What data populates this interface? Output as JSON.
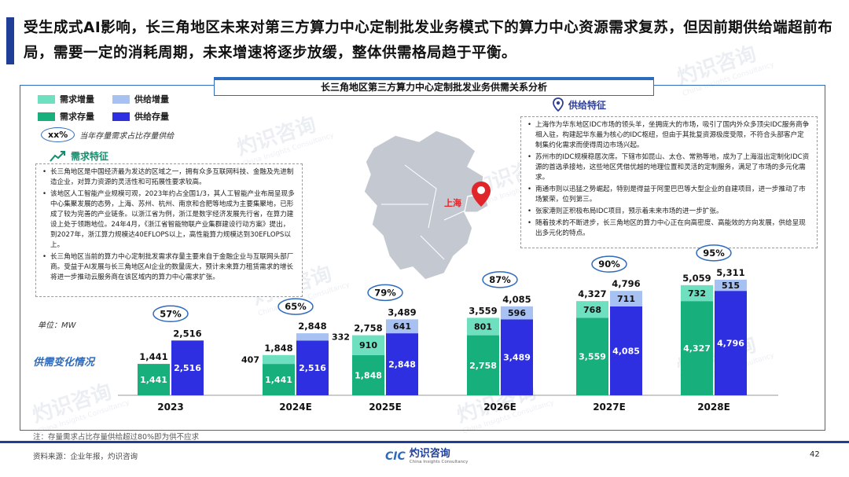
{
  "headline": "受生成式AI影响，长三角地区未来对第三方算力中心定制批发业务模式下的算力中心资源需求复苏，但因前期供给端超前布局，需要一定的消耗周期，未来增速将逐步放缓，整体供需格局趋于平衡。",
  "panel_title": "长三角地区第三方算力中心定制批发业务供需关系分析",
  "legend": {
    "demand_increase": "需求增量",
    "supply_increase": "供给增量",
    "demand_stock": "需求存量",
    "supply_stock": "供给存量"
  },
  "ratio_key": {
    "oval": "xx%",
    "text": "当年存量需求占比存量供给"
  },
  "demand": {
    "heading": "需求特征",
    "bullets": [
      "长三角地区是中国经济最为发达的区域之一，拥有众多互联网科技、金融及先进制造企业，对算力资源的灵活性和可拓展性要求较高。",
      "该地区人工智能产业规模可观，2023年约占全国1/3，其人工智能产业布局呈现多中心集聚发展的态势，上海、苏州、杭州、南京和合肥等地成为主要集聚地，已形成了较为完善的产业链条。以浙江省为例，浙江是数字经济发展先行省，在算力建设上处于领跑地位。24年4月，《浙江省智能物联产业集群建设行动方案》提出，到2027年，浙江算力规模达40EFLOPS以上，高性能算力规模达到30EFLOPS以上。",
      "长三角地区当前的算力中心定制批发需求存量主要来自于金融企业与互联网头部厂商。受益于AI发展与长三角地区AI企业的数量庞大，预计未来算力租赁需求的增长将进一步推动云服务商在该区域内的算力中心需求扩张。"
    ]
  },
  "supply": {
    "heading": "供给特征",
    "bullets": [
      "上海作为华东地区IDC市场的领头羊，坐拥庞大的市场，吸引了国内外众多顶尖IDC服务商争相入驻，构建起华东最为核心的IDC枢纽，但由于其批复资源极度受限，不符合头部客户定制集约化需求而使得周边市场兴起。",
      "苏州市的IDC规模稳居次席。下辖市如昆山、太仓、常熟等地，成为了上海溢出定制化IDC资源的首选承接地，这些地区凭借优越的地理位置和灵活的定制服务，满足了市场的多元化需求。",
      "南通市则以迅猛之势崛起，特别是得益于阿里巴巴等大型企业的自建项目，进一步推动了市场繁荣，位列第三。",
      "张家港则正积极布局IDC项目，预示着未来市场的进一步扩张。",
      "随着技术的不断进步，长三角地区的算力中心正在向高密度、高能效的方向发展，供给呈现出多元化的特点。"
    ]
  },
  "map": {
    "city_label": "上海"
  },
  "unit": "单位：MW",
  "supply_demand_label": "供需变化情况",
  "chart_data": {
    "type": "bar",
    "categories": [
      "2023",
      "2024E",
      "2025E",
      "2026E",
      "2027E",
      "2028E"
    ],
    "series": [
      {
        "name": "需求存量",
        "values": [
          1441,
          1441,
          1848,
          2758,
          3559,
          4327
        ]
      },
      {
        "name": "需求增量",
        "values": [
          null,
          407,
          910,
          801,
          768,
          732
        ]
      },
      {
        "name": "供给存量",
        "values": [
          2516,
          2516,
          2848,
          3489,
          4085,
          4796
        ]
      },
      {
        "name": "供给增量",
        "values": [
          null,
          332,
          641,
          596,
          711,
          515
        ]
      }
    ],
    "demand_totals": [
      1441,
      1848,
      2758,
      3559,
      4327,
      5059
    ],
    "supply_totals": [
      2516,
      2848,
      3489,
      4085,
      4796,
      5311
    ],
    "ratio_labels": [
      "57%",
      "65%",
      "79%",
      "87%",
      "90%",
      "95%"
    ],
    "colors": {
      "demand_stock": "#17b07c",
      "demand_increase": "#6ee0c0",
      "supply_stock": "#2e2fe0",
      "supply_increase": "#a7c2f2"
    }
  },
  "note": "注：存量需求占比存量供给超过80%即为供不应求",
  "source": "资料来源：企业年报，灼识咨询",
  "page_number": "42",
  "logo": {
    "mark": "CIC",
    "name": "灼识咨询",
    "name_en": "China Insights Consultancy"
  },
  "watermark": {
    "cn": "灼识咨询",
    "en": "China Insights Consultancy"
  }
}
